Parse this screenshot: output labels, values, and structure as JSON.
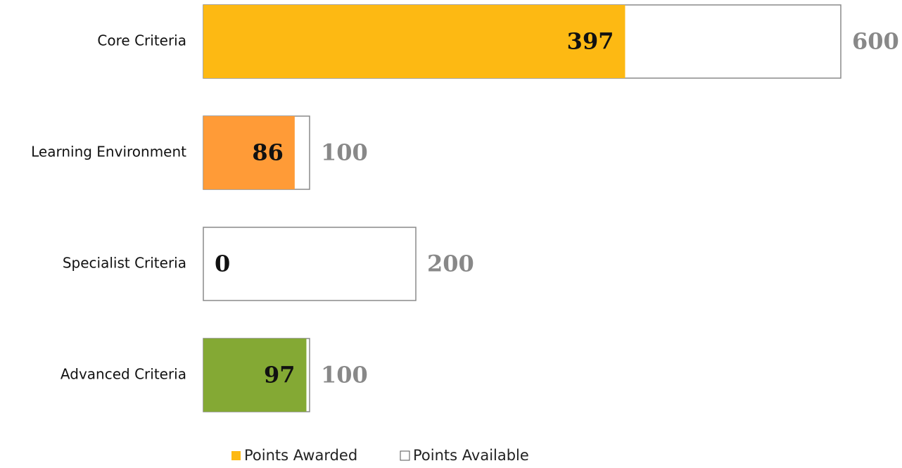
{
  "chart_data": {
    "type": "bar",
    "orientation": "horizontal",
    "overlap": true,
    "categories": [
      "Core Criteria",
      "Learning Environment",
      "Specialist Criteria",
      "Advanced Criteria"
    ],
    "series": [
      {
        "name": "Points Awarded",
        "color": "#FDB913",
        "colors": [
          "#FDB913",
          "#FF9B37",
          "#FDB913",
          "#84A934"
        ],
        "values": [
          397,
          86,
          0,
          97
        ]
      },
      {
        "name": "Points Available",
        "color": "#FFFFFF",
        "values": [
          600,
          100,
          200,
          100
        ]
      }
    ],
    "xlim": [
      0,
      600
    ],
    "legend": "bottom"
  }
}
